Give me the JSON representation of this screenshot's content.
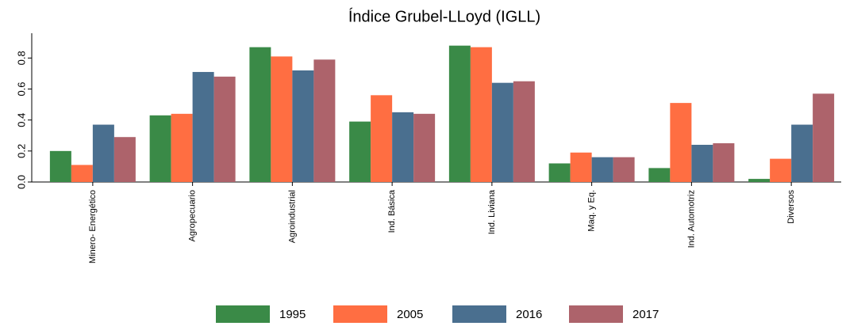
{
  "chart_data": {
    "type": "bar",
    "title": "Índice Grubel-LLoyd (IGLL)",
    "categories": [
      "Minero- Energético",
      "Agropecuario",
      "Agroindustrial",
      "Ind. Básica",
      "Ind. Liviana",
      "Maq. y Eq.",
      "Ind. Automotriz",
      "Diversos"
    ],
    "series": [
      {
        "name": "1995",
        "color": "#3a8a47",
        "values": [
          0.2,
          0.43,
          0.87,
          0.39,
          0.88,
          0.12,
          0.09,
          0.02
        ]
      },
      {
        "name": "2005",
        "color": "#ff6e42",
        "values": [
          0.11,
          0.44,
          0.81,
          0.56,
          0.87,
          0.19,
          0.51,
          0.15
        ]
      },
      {
        "name": "2016",
        "color": "#4a6f8f",
        "values": [
          0.37,
          0.71,
          0.72,
          0.45,
          0.64,
          0.16,
          0.24,
          0.37
        ]
      },
      {
        "name": "2017",
        "color": "#ad636b",
        "values": [
          0.29,
          0.68,
          0.79,
          0.44,
          0.65,
          0.16,
          0.25,
          0.57
        ]
      }
    ],
    "ylim": [
      0,
      0.96
    ],
    "yticks": [
      {
        "value": 0,
        "label": "0.0"
      },
      0.2,
      0.4,
      0.6,
      0.8
    ],
    "legend": "bottom"
  }
}
